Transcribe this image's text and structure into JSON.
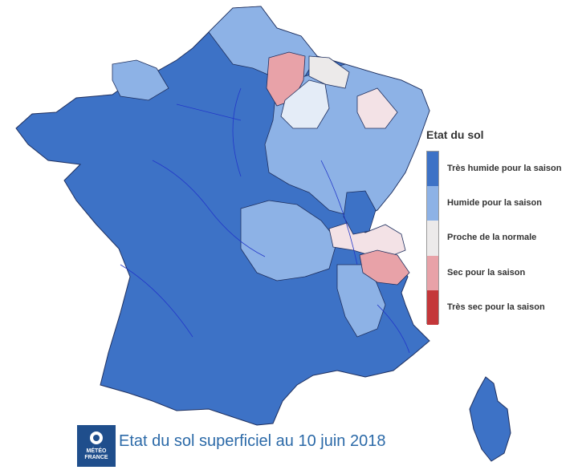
{
  "legend": {
    "title": "Etat du sol",
    "items": [
      {
        "label": "Très humide pour la saison",
        "color": "#3d72c6"
      },
      {
        "label": "Humide pour la saison",
        "color": "#8db2e6"
      },
      {
        "label": "Proche de la normale",
        "color": "#eceaea"
      },
      {
        "label": "Sec pour la saison",
        "color": "#e8a2a8"
      },
      {
        "label": "Très sec pour la saison",
        "color": "#c4373a"
      }
    ]
  },
  "caption": "Etat du sol superficiel au 10 juin 2018",
  "logo": {
    "line1": "MÉTÉO",
    "line2": "FRANCE"
  },
  "regions": [
    {
      "name": "far-north",
      "class": "Humide pour la saison"
    },
    {
      "name": "northwest-bretagne",
      "class": "Très humide pour la saison"
    },
    {
      "name": "paris-basin",
      "class": "Très humide pour la saison"
    },
    {
      "name": "southwest",
      "class": "Très humide pour la saison"
    },
    {
      "name": "massif-central",
      "class": "Humide pour la saison"
    },
    {
      "name": "lorraine-champagne",
      "class": "Humide pour la saison"
    },
    {
      "name": "ardennes-meuse",
      "class": "Sec pour la saison"
    },
    {
      "name": "moselle",
      "class": "Proche de la normale"
    },
    {
      "name": "alsace",
      "class": "Proche de la normale"
    },
    {
      "name": "jura-savoie",
      "class": "Proche de la normale"
    },
    {
      "name": "haute-savoie",
      "class": "Sec pour la saison"
    },
    {
      "name": "southeast-provence",
      "class": "Très humide pour la saison"
    },
    {
      "name": "corse",
      "class": "Très humide pour la saison"
    }
  ]
}
